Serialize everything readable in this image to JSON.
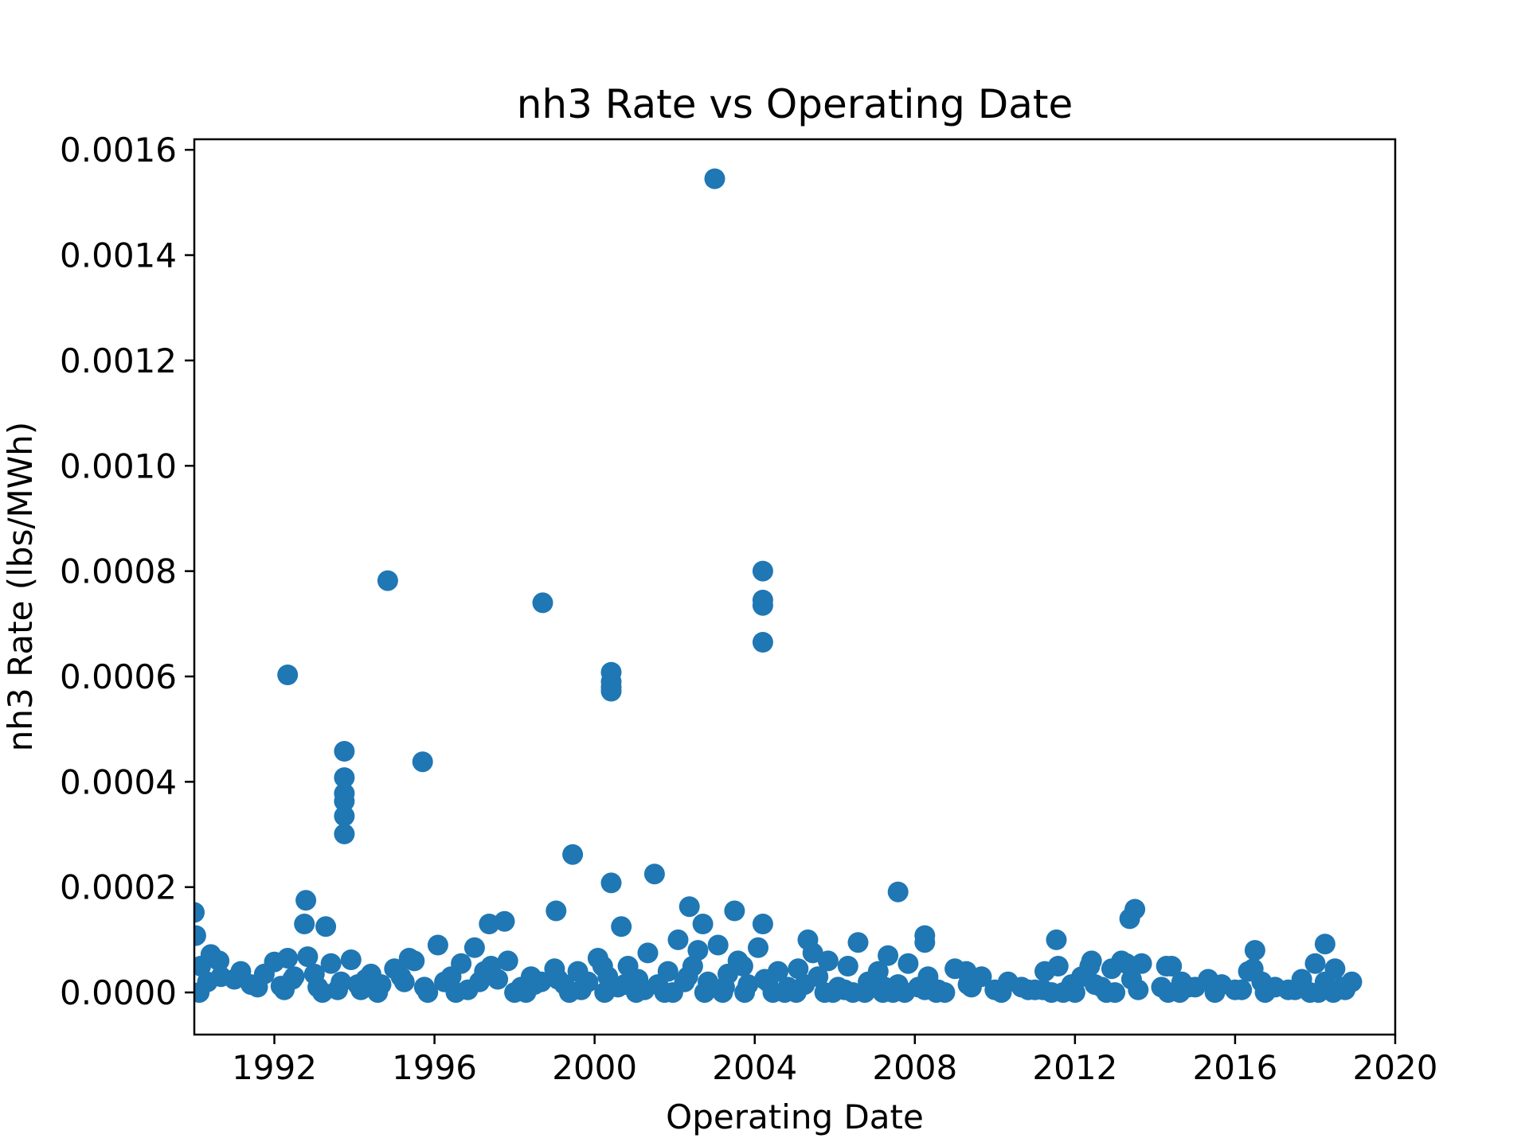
{
  "chart_data": {
    "type": "scatter",
    "title": "nh3 Rate vs Operating Date",
    "xlabel": "Operating Date",
    "ylabel": "nh3 Rate (lbs/MWh)",
    "x_is_date": true,
    "xlim": [
      "1990-01-01",
      "2020-01-01"
    ],
    "ylim": [
      -8e-05,
      0.00162
    ],
    "xticks": [
      "1992",
      "1996",
      "2000",
      "2004",
      "2008",
      "2012",
      "2016",
      "2020"
    ],
    "yticks": [
      "0.0000",
      "0.0002",
      "0.0004",
      "0.0006",
      "0.0008",
      "0.0010",
      "0.0012",
      "0.0014",
      "0.0016"
    ],
    "grid": false,
    "marker_color": "#1f77b4",
    "series": [
      {
        "x": [
          "2003-01-01",
          "1994-11-01",
          "2004-03-15",
          "2004-03-15",
          "2004-03-15",
          "2004-03-15",
          "1998-09-15",
          "1992-05-01",
          "2000-06-01",
          "2000-06-01",
          "2000-06-01",
          "2000-06-01",
          "1993-10-01",
          "1993-10-01",
          "1993-10-01",
          "1993-10-01",
          "1993-10-01",
          "1993-10-01",
          "1995-09-15",
          "1999-06-15",
          "2000-06-01",
          "2001-07-01",
          "2007-08-01",
          "1992-10-15",
          "2013-07-01",
          "2013-05-15",
          "1999-01-15",
          "2003-07-01",
          "2002-05-15",
          "1992-10-01",
          "1993-04-15",
          "1997-05-15",
          "1997-10-01",
          "2002-09-15",
          "2000-09-01",
          "2004-03-15",
          "2008-04-01",
          "2008-04-01",
          "2011-07-15",
          "2018-04-01",
          "2016-07-01",
          "1990-01-01",
          "1990-01-15",
          "1990-03-01",
          "1990-06-01",
          "1990-09-01",
          "1991-03-01",
          "1991-06-01",
          "1991-10-01",
          "1992-01-01",
          "1992-03-01",
          "1992-05-01",
          "1992-07-01",
          "1992-11-01",
          "1993-02-01",
          "1993-06-01",
          "1993-09-01",
          "1993-12-01",
          "1994-03-01",
          "1994-06-01",
          "1994-09-01",
          "1995-01-01",
          "1995-04-01",
          "1995-07-01",
          "1995-10-01",
          "1996-02-01",
          "1996-06-01",
          "1996-09-01",
          "1997-01-01",
          "1997-04-01",
          "1997-08-01",
          "1997-11-01",
          "1998-03-01",
          "1998-06-01",
          "1998-09-01",
          "1999-01-01",
          "1999-04-01",
          "1999-08-01",
          "1999-11-01",
          "2000-02-01",
          "2000-05-01",
          "2000-08-01",
          "2000-11-01",
          "2001-02-01",
          "2001-05-01",
          "2001-08-01",
          "2001-11-01",
          "2002-02-01",
          "2002-05-01",
          "2002-08-01",
          "2002-11-01",
          "2003-02-01",
          "2003-05-01",
          "2003-08-01",
          "2003-11-01",
          "2004-02-01",
          "2004-05-01",
          "2004-08-01",
          "2004-11-01",
          "2005-02-01",
          "2005-05-01",
          "2005-08-01",
          "2005-11-01",
          "2006-02-01",
          "2006-05-01",
          "2006-08-01",
          "2006-11-01",
          "2007-02-01",
          "2007-05-01",
          "2007-08-01",
          "2007-11-01",
          "2008-02-01",
          "2008-05-01",
          "2008-08-01",
          "2009-01-01",
          "2009-05-01",
          "2009-09-01",
          "2010-01-01",
          "2010-05-01",
          "2010-09-01",
          "2011-01-01",
          "2011-04-01",
          "2011-08-01",
          "2011-12-01",
          "2012-03-01",
          "2012-06-01",
          "2012-09-01",
          "2012-12-01",
          "2013-03-01",
          "2013-06-01",
          "2013-09-01",
          "2014-03-01",
          "2014-06-01",
          "2014-09-01",
          "2015-01-01",
          "2015-05-01",
          "2015-09-01",
          "2016-01-01",
          "2016-05-01",
          "2016-09-01",
          "2017-01-01",
          "2017-05-01",
          "2017-09-01",
          "2018-01-01",
          "2018-04-01",
          "2018-07-01",
          "2018-10-01",
          "2018-12-01",
          "1990-05-01",
          "1991-01-01",
          "1991-08-01",
          "1992-04-01",
          "1993-01-01",
          "1993-08-01",
          "1994-02-01",
          "1994-08-01",
          "1995-03-01",
          "1995-11-01",
          "1996-04-01",
          "1996-11-01",
          "1997-06-01",
          "1998-01-01",
          "1998-07-01",
          "1999-02-01",
          "1999-09-01",
          "2000-04-01",
          "2000-10-01",
          "2001-04-01",
          "2001-10-01",
          "2002-04-01",
          "2002-10-01",
          "2003-04-01",
          "2003-10-01",
          "2004-04-01",
          "2004-10-01",
          "2005-04-01",
          "2005-10-01",
          "2006-04-01",
          "2006-10-01",
          "2007-04-01",
          "2007-10-01",
          "2008-04-01",
          "2008-10-01",
          "2009-06-01",
          "2010-03-01",
          "2010-11-01",
          "2011-06-01",
          "2012-01-01",
          "2012-07-01",
          "2013-01-01",
          "2013-08-01",
          "2014-05-01",
          "2014-11-01",
          "2015-07-01",
          "2016-03-01",
          "2016-10-01",
          "2017-07-01",
          "2018-02-01",
          "2018-09-01",
          "1990-02-15",
          "1990-08-15",
          "1992-06-15",
          "1993-03-15",
          "1994-04-15",
          "1995-05-15",
          "1996-07-15",
          "1997-02-15",
          "1998-04-15",
          "1999-05-15",
          "2000-03-15",
          "2001-01-15",
          "2001-12-15",
          "2002-06-15",
          "2003-03-15",
          "2003-09-15",
          "2004-06-15",
          "2005-01-15",
          "2005-06-15",
          "2005-12-15",
          "2006-06-15",
          "2007-03-15",
          "2007-06-15",
          "2008-07-15",
          "2009-04-15",
          "2011-03-15",
          "2011-09-15",
          "2012-05-15",
          "2012-10-15",
          "2013-04-15",
          "2014-04-15",
          "2014-08-15",
          "2016-06-15",
          "2017-11-15",
          "2018-06-15"
        ],
        "y": [
          0.001545,
          0.000782,
          0.0008,
          0.000745,
          0.000735,
          0.000665,
          0.00074,
          0.000603,
          0.000608,
          0.00059,
          0.000572,
          0.00058,
          0.000458,
          0.000408,
          0.000378,
          0.000363,
          0.000335,
          0.000301,
          0.000438,
          0.000262,
          0.000208,
          0.000225,
          0.000191,
          0.000175,
          0.000158,
          0.00014,
          0.000155,
          0.000155,
          0.000163,
          0.00013,
          0.000125,
          0.00013,
          0.000135,
          0.00013,
          0.000125,
          0.00013,
          0.000108,
          9.5e-05,
          0.0001,
          9.2e-05,
          8e-05,
          0.000152,
          0.000108,
          5e-05,
          7.2e-05,
          3e-05,
          4e-05,
          1.5e-05,
          3.5e-05,
          5.8e-05,
          1.2e-05,
          6.5e-05,
          3e-05,
          6.8e-05,
          1e-05,
          5.5e-05,
          2e-05,
          6.2e-05,
          5e-06,
          3.5e-05,
          1.5e-05,
          4.5e-05,
          2e-05,
          6e-05,
          1e-05,
          9e-05,
          3e-05,
          5.5e-05,
          8.5e-05,
          4e-05,
          2.5e-05,
          6e-05,
          1e-05,
          3e-05,
          2e-05,
          4.5e-05,
          1.5e-05,
          4e-05,
          2e-05,
          6.5e-05,
          3e-05,
          1e-05,
          5e-05,
          2.5e-05,
          7.5e-05,
          1.5e-05,
          4e-05,
          0.0001,
          3e-05,
          8e-05,
          2e-05,
          9e-05,
          3.5e-05,
          6e-05,
          1.5e-05,
          8.5e-05,
          2e-05,
          4e-05,
          1e-05,
          4.5e-05,
          0.0001,
          3e-05,
          6e-05,
          1e-05,
          5e-05,
          9.5e-05,
          2e-05,
          4e-05,
          7e-05,
          1.5e-05,
          5.5e-05,
          1e-05,
          3e-05,
          5e-06,
          4.5e-05,
          1.5e-05,
          3e-05,
          5e-06,
          2e-05,
          1e-05,
          5e-06,
          4e-05,
          5e-05,
          1.5e-05,
          3e-05,
          6e-05,
          1e-05,
          4.5e-05,
          6e-05,
          2.5e-05,
          5.5e-05,
          1e-05,
          5e-05,
          2e-05,
          1e-05,
          2.5e-05,
          1.5e-05,
          5e-06,
          4e-05,
          2e-05,
          1e-05,
          5e-06,
          2.5e-05,
          5.5e-05,
          2e-05,
          4.5e-05,
          5e-06,
          2e-05,
          2e-05,
          2.5e-05,
          1e-05,
          5e-06,
          3.5e-05,
          5e-06,
          1.5e-05,
          0.0,
          3e-05,
          0.0,
          2e-05,
          5e-06,
          5e-05,
          0.0,
          1.5e-05,
          2.5e-05,
          5e-06,
          0.0,
          1.5e-05,
          5e-06,
          0.0,
          2e-05,
          0.0,
          1e-05,
          0.0,
          2.5e-05,
          0.0,
          1.5e-05,
          0.0,
          5e-06,
          0.0,
          1e-05,
          0.0,
          5e-06,
          0.0,
          1e-05,
          0.0,
          5e-06,
          0.0,
          0.0,
          1.5e-05,
          0.0,
          5e-06,
          0.0,
          1e-05,
          0.0,
          5e-06,
          0.0,
          5e-06,
          0.0,
          1e-05,
          0.0,
          6e-05,
          2.5e-05,
          0.0,
          2.5e-05,
          6.5e-05,
          0.0,
          2e-05,
          0.0,
          0.0,
          5e-05,
          0.0,
          0.0,
          5e-05,
          0.0,
          5e-05,
          0.0,
          0.0,
          7.5e-05,
          0.0,
          0.0,
          0.0,
          0.0,
          0.0,
          4e-05,
          5e-06,
          0.0,
          5e-05,
          0.0,
          5.5e-05,
          5e-05,
          0.0,
          4.5e-05,
          0.0,
          0.0
        ]
      }
    ]
  }
}
